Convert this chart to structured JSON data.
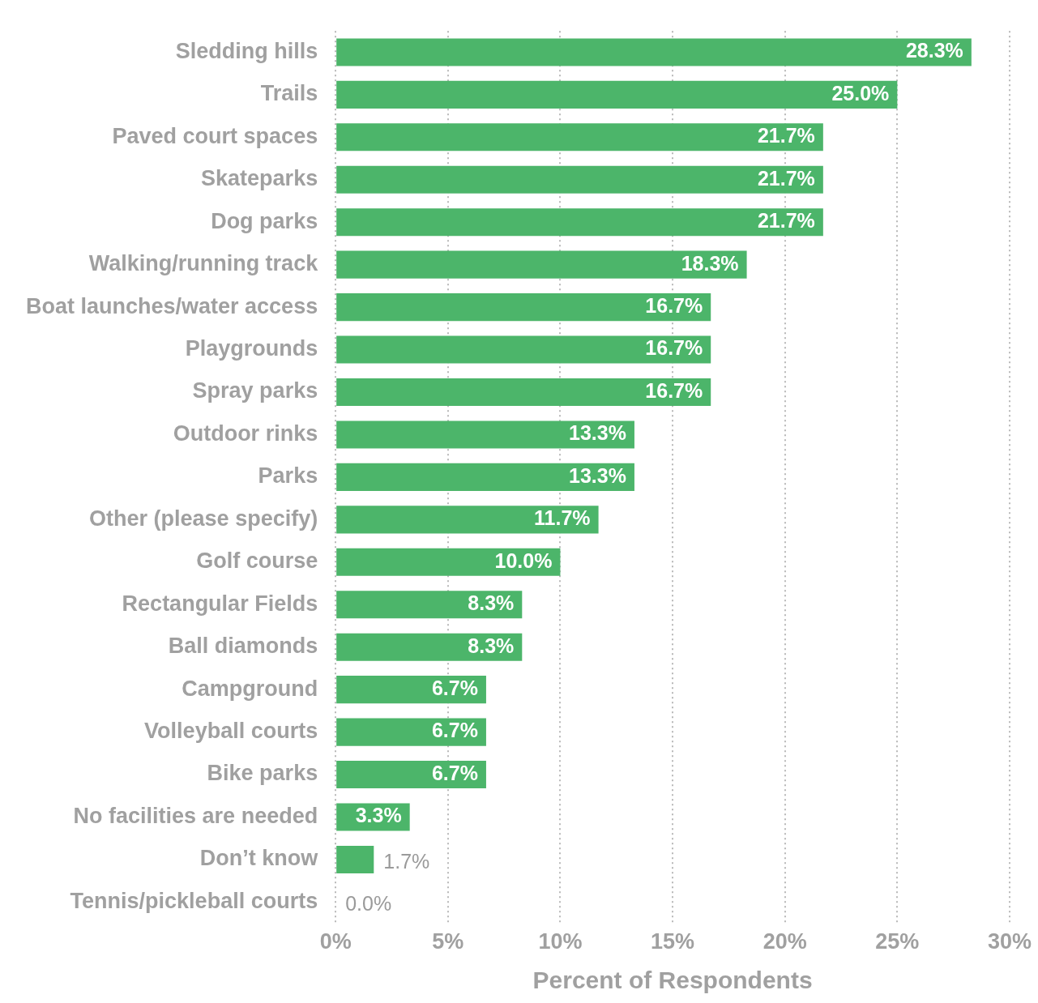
{
  "chart_data": {
    "type": "bar",
    "orientation": "horizontal",
    "xlabel": "Percent of Respondents",
    "categories": [
      "Sledding hills",
      "Trails",
      "Paved court spaces",
      "Skateparks",
      "Dog parks",
      "Walking/running track",
      "Boat launches/water access",
      "Playgrounds",
      "Spray parks",
      "Outdoor rinks",
      "Parks",
      "Other (please specify)",
      "Golf course",
      "Rectangular Fields",
      "Ball diamonds",
      "Campground",
      "Volleyball courts",
      "Bike parks",
      "No facilities are needed",
      "Don’t know",
      "Tennis/pickleball courts"
    ],
    "values": [
      28.3,
      25.0,
      21.7,
      21.7,
      21.7,
      18.3,
      16.7,
      16.7,
      16.7,
      13.3,
      13.3,
      11.7,
      10.0,
      8.3,
      8.3,
      6.7,
      6.7,
      6.7,
      3.3,
      1.7,
      0.0
    ],
    "value_labels": [
      "28.3%",
      "25.0%",
      "21.7%",
      "21.7%",
      "21.7%",
      "18.3%",
      "16.7%",
      "16.7%",
      "16.7%",
      "13.3%",
      "13.3%",
      "11.7%",
      "10.0%",
      "8.3%",
      "8.3%",
      "6.7%",
      "6.7%",
      "6.7%",
      "3.3%",
      "1.7%",
      "0.0%"
    ],
    "color": "#4cb56a",
    "xlim": [
      0,
      30
    ],
    "xticks": [
      {
        "value": 0,
        "label": "0%"
      },
      {
        "value": 5,
        "label": "5%"
      },
      {
        "value": 10,
        "label": "10%"
      },
      {
        "value": 15,
        "label": "15%"
      },
      {
        "value": 20,
        "label": "20%"
      },
      {
        "value": 25,
        "label": "25%"
      },
      {
        "value": 30,
        "label": "30%"
      }
    ],
    "grid": "x",
    "legend": false
  }
}
